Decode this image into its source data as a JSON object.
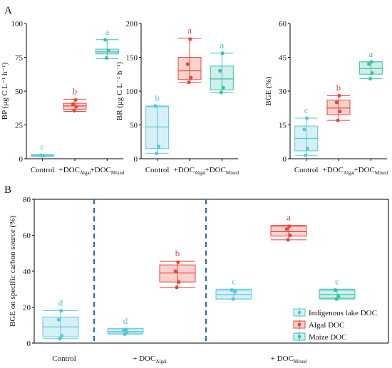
{
  "colors": {
    "blue": "#5bc8d8",
    "red": "#e8483a",
    "teal": "#3fbfae",
    "divider": "#1f6fae"
  },
  "panels": {
    "a": "A",
    "b": "B"
  },
  "chart_data": [
    {
      "id": "bp",
      "type": "box",
      "ylabel": "BP (μg C L⁻¹ h⁻¹)",
      "ylim": [
        0,
        100
      ],
      "yticks": [
        0,
        25,
        50,
        75,
        100
      ],
      "categories": [
        "Control",
        "+DOC_Algal",
        "+DOC_Mixed"
      ],
      "boxes": [
        {
          "category": "Control",
          "color": "blue",
          "min": 1.8,
          "q1": 2.0,
          "median": 2.3,
          "q3": 2.7,
          "max": 3.0,
          "points": [
            2.0,
            2.3,
            2.6
          ],
          "label": "c"
        },
        {
          "category": "+DOC_Algal",
          "color": "red",
          "min": 35,
          "q1": 36.5,
          "median": 39,
          "q3": 41,
          "max": 44,
          "points": [
            35.5,
            38.5,
            40.5,
            43.5
          ],
          "label": "b"
        },
        {
          "category": "+DOC_Mixed",
          "color": "teal",
          "min": 74,
          "q1": 77.5,
          "median": 79,
          "q3": 81,
          "max": 88,
          "points": [
            74.5,
            80,
            88
          ],
          "label": "a"
        }
      ]
    },
    {
      "id": "br",
      "type": "box",
      "ylabel": "BR (μg C L⁻¹ h⁻¹)",
      "ylim": [
        0,
        200
      ],
      "yticks": [
        0,
        50,
        100,
        150,
        200
      ],
      "categories": [
        "Control",
        "+DOC_Algal",
        "+DOC_Mixed"
      ],
      "boxes": [
        {
          "category": "Control",
          "color": "blue",
          "min": 8,
          "q1": 15,
          "median": 47,
          "q3": 77,
          "max": 78,
          "points": [
            8,
            18,
            78
          ],
          "label": "b"
        },
        {
          "category": "+DOC_Algal",
          "color": "red",
          "min": 113,
          "q1": 117,
          "median": 130,
          "q3": 150,
          "max": 178,
          "points": [
            113,
            120,
            140,
            177
          ],
          "label": "a"
        },
        {
          "category": "+DOC_Mixed",
          "color": "teal",
          "min": 98,
          "q1": 102,
          "median": 118,
          "q3": 137,
          "max": 156,
          "points": [
            98,
            105,
            130,
            156
          ],
          "label": "a"
        }
      ]
    },
    {
      "id": "bge",
      "type": "box",
      "ylabel": "BGE (%)",
      "ylim": [
        0,
        60
      ],
      "yticks": [
        0,
        15,
        30,
        45,
        60
      ],
      "categories": [
        "Control",
        "+DOC_Algal",
        "+DOC_Mixed"
      ],
      "boxes": [
        {
          "category": "Control",
          "color": "blue",
          "min": 1.5,
          "q1": 3.5,
          "median": 9,
          "q3": 14.5,
          "max": 18,
          "points": [
            1.5,
            4.5,
            13,
            18
          ],
          "label": "c"
        },
        {
          "category": "+DOC_Algal",
          "color": "red",
          "min": 17,
          "q1": 19.5,
          "median": 22.5,
          "q3": 26,
          "max": 28,
          "points": [
            17,
            21,
            25,
            28
          ],
          "label": "b"
        },
        {
          "category": "+DOC_Mixed",
          "color": "teal",
          "min": 35.5,
          "q1": 37.5,
          "median": 40,
          "q3": 43,
          "max": 43,
          "points": [
            35.5,
            38,
            42,
            43
          ],
          "label": "a"
        }
      ]
    },
    {
      "id": "source",
      "type": "box",
      "ylabel": "BGE on specific carbon source (%)",
      "ylim": [
        0,
        80
      ],
      "yticks": [
        0,
        20,
        40,
        60,
        80
      ],
      "groups": [
        "Control",
        "+ DOC_Algal",
        "+ DOC_Mixed"
      ],
      "legend": {
        "position": "bottom-right",
        "entries": [
          {
            "name": "Indigenous lake DOC",
            "color": "blue"
          },
          {
            "name": "Algal DOC",
            "color": "red"
          },
          {
            "name": "Maize DOC",
            "color": "teal"
          }
        ]
      },
      "boxes": [
        {
          "group": "Control",
          "source": "Indigenous lake DOC",
          "color": "blue",
          "min": 2.5,
          "q1": 3.5,
          "median": 9,
          "q3": 14.5,
          "max": 18,
          "points": [
            2.5,
            4,
            13,
            18
          ],
          "label": "d"
        },
        {
          "group": "+ DOC_Algal",
          "source": "Indigenous lake DOC",
          "color": "blue",
          "min": 5,
          "q1": 5.5,
          "median": 6.5,
          "q3": 8,
          "max": 8,
          "points": [
            5,
            6,
            7,
            7.5
          ],
          "label": "d"
        },
        {
          "group": "+ DOC_Algal",
          "source": "Algal DOC",
          "color": "red",
          "min": 31,
          "q1": 34,
          "median": 39,
          "q3": 43.5,
          "max": 45.5,
          "points": [
            31,
            34,
            40,
            45
          ],
          "label": "b"
        },
        {
          "group": "+ DOC_Mixed",
          "source": "Indigenous lake DOC",
          "color": "blue",
          "min": 24.5,
          "q1": 24.5,
          "median": 27,
          "q3": 29.5,
          "max": 30,
          "points": [
            24.5,
            28.5,
            29.5
          ],
          "label": "c"
        },
        {
          "group": "+ DOC_Mixed",
          "source": "Algal DOC",
          "color": "red",
          "min": 57.5,
          "q1": 59.5,
          "median": 62,
          "q3": 65,
          "max": 65.5,
          "points": [
            57.5,
            60,
            63.5,
            65
          ],
          "label": "a"
        },
        {
          "group": "+ DOC_Mixed",
          "source": "Maize DOC",
          "color": "teal",
          "min": 24.5,
          "q1": 25,
          "median": 27,
          "q3": 29.5,
          "max": 30,
          "points": [
            24.5,
            26,
            29.5
          ],
          "label": "c"
        }
      ]
    }
  ]
}
